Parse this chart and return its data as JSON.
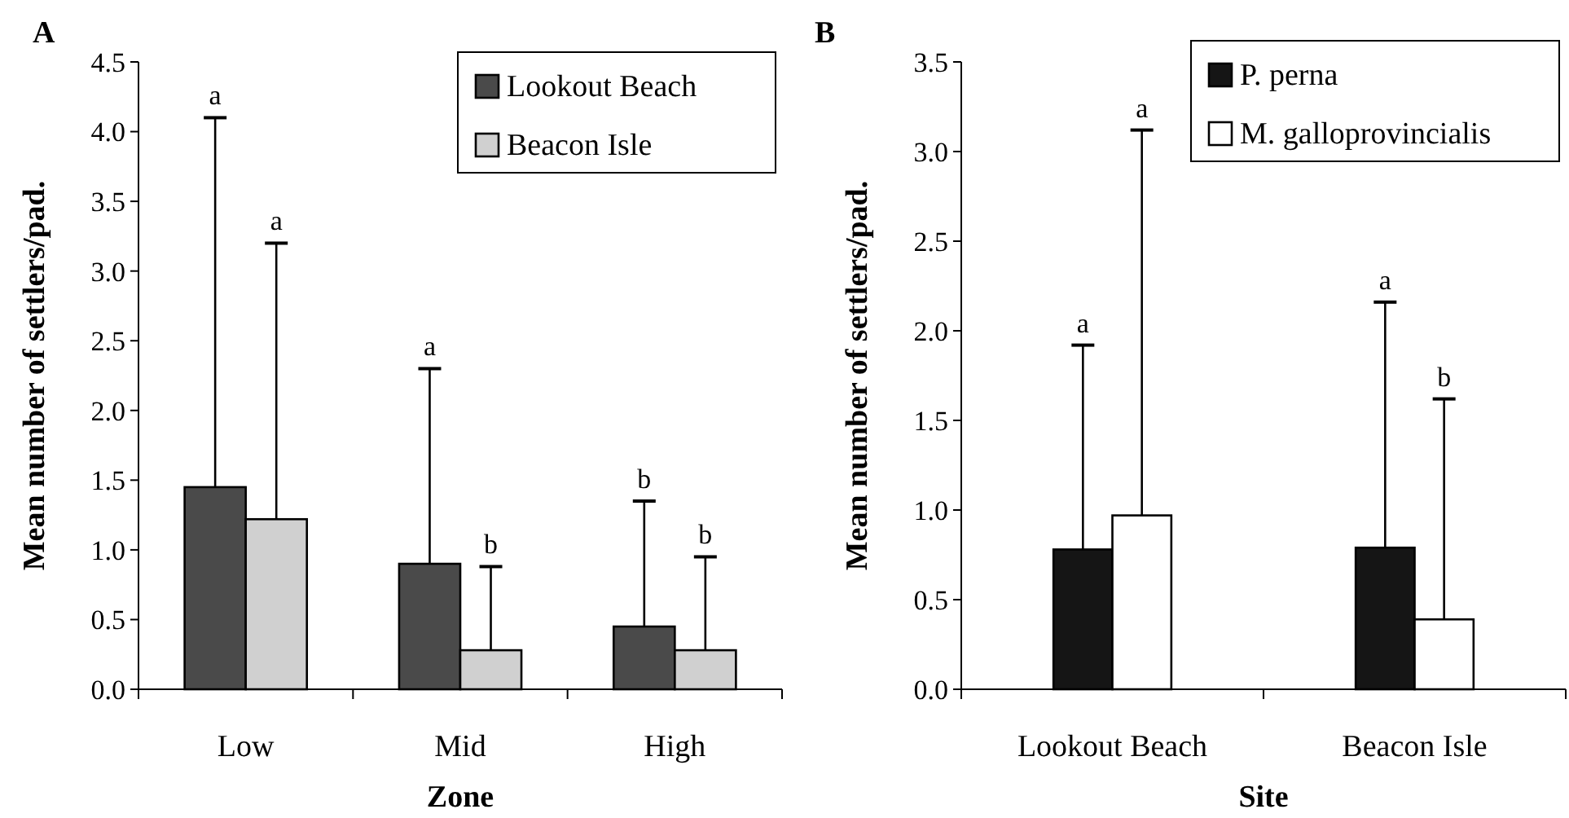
{
  "chart_data": [
    {
      "type": "bar",
      "title": "A",
      "xlabel": "Zone",
      "ylabel": "Mean number of settlers/pad.",
      "categories": [
        "Low",
        "Mid",
        "High"
      ],
      "series": [
        {
          "name": "Lookout Beach",
          "color": "#4a4a4a",
          "values": [
            1.45,
            0.9,
            0.45
          ],
          "errors": [
            [
              1.45,
              4.1
            ],
            [
              0.9,
              2.3
            ],
            [
              0.45,
              1.35
            ]
          ]
        },
        {
          "name": "Beacon Isle",
          "color": "#d0d0d0",
          "values": [
            1.22,
            0.28,
            0.28
          ],
          "errors": [
            [
              1.22,
              3.2
            ],
            [
              0.28,
              0.88
            ],
            [
              0.28,
              0.95
            ]
          ]
        }
      ],
      "ylim": [
        0,
        4.5
      ],
      "yticks": [
        {
          "value": 0,
          "label": "0.0"
        },
        {
          "value": 0.5,
          "label": "0.5"
        },
        {
          "value": 1,
          "label": "1.0"
        },
        {
          "value": 1.5,
          "label": "1.5"
        },
        {
          "value": 2,
          "label": "2.0"
        },
        {
          "value": 2.5,
          "label": "2.5"
        },
        {
          "value": 3,
          "label": "3.0"
        },
        {
          "value": 3.5,
          "label": "3.5"
        },
        {
          "value": 4,
          "label": "4.0"
        },
        {
          "value": 4.5,
          "label": "4.5"
        }
      ],
      "grid": false,
      "legend": "top right",
      "annotations": [
        "a",
        "a",
        "a",
        "b",
        "b",
        "b"
      ]
    },
    {
      "type": "bar",
      "title": "B",
      "xlabel": "Site",
      "ylabel": "Mean number of settlers/pad.",
      "categories": [
        "Lookout Beach",
        "Beacon Isle"
      ],
      "series": [
        {
          "name": "P. perna",
          "color": "#151515",
          "values": [
            0.78,
            0.79
          ],
          "errors": [
            [
              0.78,
              1.92
            ],
            [
              0.79,
              2.16
            ]
          ]
        },
        {
          "name": "M. galloprovincialis",
          "color": "#ffffff",
          "values": [
            0.97,
            0.39
          ],
          "errors": [
            [
              0.97,
              3.12
            ],
            [
              0.39,
              1.62
            ]
          ]
        }
      ],
      "ylim": [
        0,
        3.5
      ],
      "yticks": [
        {
          "value": 0,
          "label": "0.0"
        },
        {
          "value": 0.5,
          "label": "0.5"
        },
        {
          "value": 1,
          "label": "1.0"
        },
        {
          "value": 1.5,
          "label": "1.5"
        },
        {
          "value": 2,
          "label": "2.0"
        },
        {
          "value": 2.5,
          "label": "2.5"
        },
        {
          "value": 3,
          "label": "3.0"
        },
        {
          "value": 3.5,
          "label": "3.5"
        }
      ],
      "grid": false,
      "legend": "top right",
      "annotations": [
        "a",
        "a",
        "a",
        "b"
      ]
    }
  ]
}
